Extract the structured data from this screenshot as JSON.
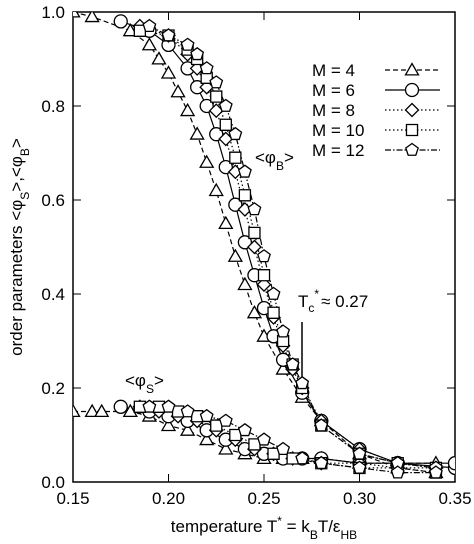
{
  "chart_data": {
    "type": "line",
    "y_label": [
      "order parameters <φ",
      "S",
      ">,<φ",
      "B",
      ">"
    ],
    "x_label": [
      "temperature T",
      "*",
      " = k",
      "B",
      "T/ε",
      "HB"
    ],
    "annotations": {
      "phi_B": [
        "<φ",
        "B",
        ">"
      ],
      "phi_S": [
        "<φ",
        "S",
        ">"
      ],
      "tc": [
        "T",
        "c",
        "*",
        "≈ 0.27"
      ]
    },
    "xlim": [
      0.15,
      0.35
    ],
    "ylim": [
      0,
      1.0
    ],
    "xticks": [
      0.15,
      {
        "value": 0.2,
        "label": "0.20"
      },
      0.25,
      {
        "value": 0.3,
        "label": "0.30"
      },
      0.35
    ],
    "yticks": [
      {
        "value": 0,
        "label": "0.0"
      },
      0.2,
      0.4,
      0.6,
      0.8,
      {
        "value": 1.0,
        "label": "1.0"
      }
    ],
    "color": "#000000",
    "series": [
      {
        "name": "M = 4",
        "marker": "triangle",
        "dash": "dashed",
        "x": [
          0.15,
          0.16,
          0.18,
          0.19,
          0.195,
          0.2,
          0.205,
          0.21,
          0.215,
          0.22,
          0.225,
          0.23,
          0.235,
          0.24,
          0.245,
          0.25,
          0.26,
          0.27,
          0.28,
          0.3,
          0.32,
          0.34
        ],
        "values": [
          1.0,
          0.99,
          0.96,
          0.93,
          0.9,
          0.87,
          0.83,
          0.79,
          0.74,
          0.68,
          0.62,
          0.55,
          0.48,
          0.42,
          0.36,
          0.31,
          0.24,
          0.18,
          0.13,
          0.06,
          0.03,
          0.02
        ],
        "x_s": [
          0.15,
          0.16,
          0.165,
          0.18,
          0.19,
          0.2,
          0.21,
          0.22,
          0.23,
          0.24,
          0.25,
          0.26,
          0.27,
          0.28,
          0.3,
          0.32,
          0.34
        ],
        "values_s": [
          0.15,
          0.15,
          0.15,
          0.15,
          0.14,
          0.12,
          0.11,
          0.09,
          0.07,
          0.06,
          0.05,
          0.05,
          0.05,
          0.05,
          0.04,
          0.04,
          0.04
        ]
      },
      {
        "name": "M = 6",
        "marker": "circle",
        "dash": "solid",
        "x": [
          0.175,
          0.19,
          0.2,
          0.21,
          0.215,
          0.22,
          0.225,
          0.23,
          0.235,
          0.24,
          0.245,
          0.25,
          0.255,
          0.26,
          0.27,
          0.28,
          0.3,
          0.32,
          0.35
        ],
        "values": [
          0.98,
          0.96,
          0.93,
          0.88,
          0.84,
          0.8,
          0.74,
          0.67,
          0.59,
          0.51,
          0.44,
          0.37,
          0.31,
          0.26,
          0.19,
          0.13,
          0.07,
          0.04,
          0.03
        ],
        "x_s": [
          0.175,
          0.19,
          0.2,
          0.21,
          0.22,
          0.23,
          0.24,
          0.25,
          0.26,
          0.27,
          0.28,
          0.3,
          0.32,
          0.35
        ],
        "values_s": [
          0.16,
          0.15,
          0.14,
          0.13,
          0.11,
          0.09,
          0.07,
          0.06,
          0.05,
          0.05,
          0.05,
          0.04,
          0.04,
          0.04
        ]
      },
      {
        "name": "M = 8",
        "marker": "diamond",
        "dash": "dotted",
        "x": [
          0.185,
          0.2,
          0.21,
          0.215,
          0.22,
          0.225,
          0.23,
          0.235,
          0.24,
          0.245,
          0.25,
          0.255,
          0.26,
          0.265,
          0.27,
          0.28,
          0.3,
          0.32,
          0.34
        ],
        "values": [
          0.97,
          0.95,
          0.91,
          0.88,
          0.84,
          0.79,
          0.73,
          0.66,
          0.58,
          0.5,
          0.42,
          0.35,
          0.29,
          0.24,
          0.2,
          0.13,
          0.07,
          0.04,
          0.03
        ],
        "x_s": [
          0.185,
          0.195,
          0.205,
          0.215,
          0.225,
          0.235,
          0.245,
          0.255,
          0.265,
          0.28,
          0.3,
          0.32,
          0.34
        ],
        "values_s": [
          0.16,
          0.15,
          0.14,
          0.13,
          0.11,
          0.09,
          0.07,
          0.06,
          0.05,
          0.04,
          0.04,
          0.03,
          0.03
        ]
      },
      {
        "name": "M = 10",
        "marker": "square",
        "dash": "dotted",
        "x": [
          0.185,
          0.2,
          0.21,
          0.215,
          0.22,
          0.225,
          0.23,
          0.235,
          0.24,
          0.245,
          0.25,
          0.255,
          0.26,
          0.265,
          0.27,
          0.28,
          0.3,
          0.32,
          0.34
        ],
        "values": [
          0.96,
          0.95,
          0.92,
          0.9,
          0.86,
          0.82,
          0.76,
          0.69,
          0.61,
          0.53,
          0.44,
          0.36,
          0.3,
          0.25,
          0.2,
          0.12,
          0.06,
          0.04,
          0.03
        ],
        "x_s": [
          0.185,
          0.195,
          0.205,
          0.215,
          0.225,
          0.235,
          0.245,
          0.255,
          0.265,
          0.28,
          0.3,
          0.32,
          0.34
        ],
        "values_s": [
          0.16,
          0.16,
          0.15,
          0.14,
          0.12,
          0.1,
          0.08,
          0.06,
          0.05,
          0.04,
          0.03,
          0.03,
          0.02
        ]
      },
      {
        "name": "M = 12",
        "marker": "pentagon",
        "dash": "dashdot",
        "x": [
          0.19,
          0.2,
          0.21,
          0.215,
          0.22,
          0.225,
          0.23,
          0.235,
          0.24,
          0.245,
          0.25,
          0.255,
          0.26,
          0.265,
          0.27,
          0.28,
          0.3,
          0.32,
          0.34
        ],
        "values": [
          0.97,
          0.95,
          0.93,
          0.91,
          0.88,
          0.85,
          0.8,
          0.74,
          0.66,
          0.58,
          0.48,
          0.4,
          0.32,
          0.25,
          0.21,
          0.12,
          0.06,
          0.04,
          0.03
        ],
        "x_s": [
          0.19,
          0.2,
          0.21,
          0.22,
          0.23,
          0.24,
          0.25,
          0.26,
          0.27,
          0.28,
          0.3,
          0.32,
          0.34
        ],
        "values_s": [
          0.16,
          0.16,
          0.15,
          0.14,
          0.13,
          0.11,
          0.09,
          0.07,
          0.05,
          0.04,
          0.03,
          0.02,
          0.02
        ]
      }
    ]
  }
}
